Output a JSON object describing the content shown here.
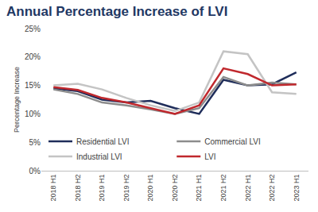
{
  "chart_data": {
    "type": "line",
    "title": "Annual Percentage Increase of LVI",
    "y_label": "Percentage Increase",
    "categories": [
      "2018 H1",
      "2018 H2",
      "2019 H1",
      "2019 H2",
      "2020 H1",
      "2020 H2",
      "2021 H1",
      "2021 H2",
      "2022 H1",
      "2022 H2",
      "2023 H1"
    ],
    "series": [
      {
        "name": "Residential LVI",
        "color": "#1f2d5a",
        "values": [
          14.5,
          14,
          12.5,
          12,
          12.3,
          11,
          10,
          16,
          15,
          15.2,
          17.3
        ]
      },
      {
        "name": "Commercial LVI",
        "color": "#8c8c8c",
        "values": [
          14.3,
          13.5,
          12,
          11.5,
          10.8,
          10,
          11,
          16.5,
          15,
          15.5,
          15.2
        ]
      },
      {
        "name": "Industrial LVI",
        "color": "#c4c4c4",
        "values": [
          15,
          15.3,
          14.3,
          12.8,
          11.5,
          10.5,
          12,
          21,
          20.5,
          13.8,
          13.5
        ]
      },
      {
        "name": "LVI",
        "color": "#c0282d",
        "values": [
          14.7,
          14.2,
          12.8,
          12,
          11,
          10,
          11.5,
          18,
          17,
          15,
          15.2
        ]
      }
    ],
    "ylim": [
      0,
      25
    ],
    "yticks": [
      {
        "value": 0,
        "label": "0%"
      },
      {
        "value": 5,
        "label": "5%"
      },
      {
        "value": 10,
        "label": "10%"
      },
      {
        "value": 15,
        "label": "15%"
      },
      {
        "value": 20,
        "label": "20%"
      },
      {
        "value": 25,
        "label": "25%"
      }
    ],
    "grid": false,
    "legend": "bottom"
  }
}
